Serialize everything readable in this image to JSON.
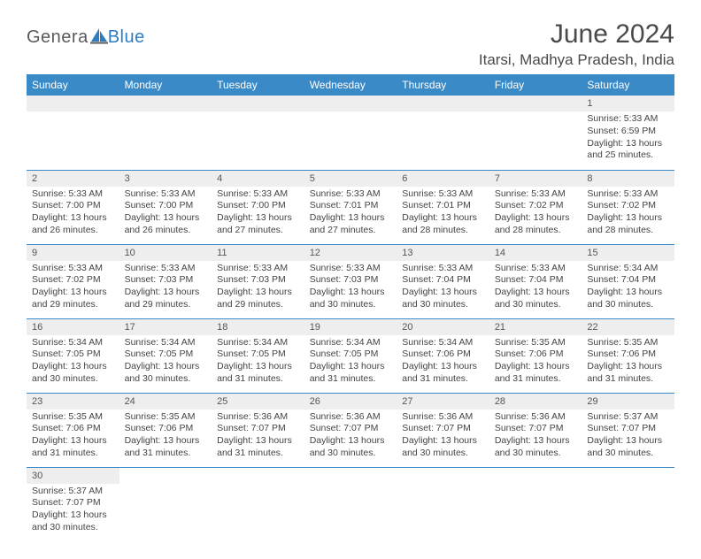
{
  "logo": {
    "text1": "Genera",
    "text2": "Blue"
  },
  "title": "June 2024",
  "location": "Itarsi, Madhya Pradesh, India",
  "colors": {
    "header_bg": "#3a8ac8",
    "header_text": "#ffffff",
    "daynum_bg": "#eeeeee",
    "cell_border": "#3a8ac8",
    "logo_gray": "#5a5a5a",
    "logo_blue": "#2f7cc0",
    "text": "#444444"
  },
  "daysOfWeek": [
    "Sunday",
    "Monday",
    "Tuesday",
    "Wednesday",
    "Thursday",
    "Friday",
    "Saturday"
  ],
  "weeks": [
    [
      {
        "blank": true
      },
      {
        "blank": true
      },
      {
        "blank": true
      },
      {
        "blank": true
      },
      {
        "blank": true
      },
      {
        "blank": true
      },
      {
        "n": "1",
        "sr": "5:33 AM",
        "ss": "6:59 PM",
        "dl": "13 hours and 25 minutes."
      }
    ],
    [
      {
        "n": "2",
        "sr": "5:33 AM",
        "ss": "7:00 PM",
        "dl": "13 hours and 26 minutes."
      },
      {
        "n": "3",
        "sr": "5:33 AM",
        "ss": "7:00 PM",
        "dl": "13 hours and 26 minutes."
      },
      {
        "n": "4",
        "sr": "5:33 AM",
        "ss": "7:00 PM",
        "dl": "13 hours and 27 minutes."
      },
      {
        "n": "5",
        "sr": "5:33 AM",
        "ss": "7:01 PM",
        "dl": "13 hours and 27 minutes."
      },
      {
        "n": "6",
        "sr": "5:33 AM",
        "ss": "7:01 PM",
        "dl": "13 hours and 28 minutes."
      },
      {
        "n": "7",
        "sr": "5:33 AM",
        "ss": "7:02 PM",
        "dl": "13 hours and 28 minutes."
      },
      {
        "n": "8",
        "sr": "5:33 AM",
        "ss": "7:02 PM",
        "dl": "13 hours and 28 minutes."
      }
    ],
    [
      {
        "n": "9",
        "sr": "5:33 AM",
        "ss": "7:02 PM",
        "dl": "13 hours and 29 minutes."
      },
      {
        "n": "10",
        "sr": "5:33 AM",
        "ss": "7:03 PM",
        "dl": "13 hours and 29 minutes."
      },
      {
        "n": "11",
        "sr": "5:33 AM",
        "ss": "7:03 PM",
        "dl": "13 hours and 29 minutes."
      },
      {
        "n": "12",
        "sr": "5:33 AM",
        "ss": "7:03 PM",
        "dl": "13 hours and 30 minutes."
      },
      {
        "n": "13",
        "sr": "5:33 AM",
        "ss": "7:04 PM",
        "dl": "13 hours and 30 minutes."
      },
      {
        "n": "14",
        "sr": "5:33 AM",
        "ss": "7:04 PM",
        "dl": "13 hours and 30 minutes."
      },
      {
        "n": "15",
        "sr": "5:34 AM",
        "ss": "7:04 PM",
        "dl": "13 hours and 30 minutes."
      }
    ],
    [
      {
        "n": "16",
        "sr": "5:34 AM",
        "ss": "7:05 PM",
        "dl": "13 hours and 30 minutes."
      },
      {
        "n": "17",
        "sr": "5:34 AM",
        "ss": "7:05 PM",
        "dl": "13 hours and 30 minutes."
      },
      {
        "n": "18",
        "sr": "5:34 AM",
        "ss": "7:05 PM",
        "dl": "13 hours and 31 minutes."
      },
      {
        "n": "19",
        "sr": "5:34 AM",
        "ss": "7:05 PM",
        "dl": "13 hours and 31 minutes."
      },
      {
        "n": "20",
        "sr": "5:34 AM",
        "ss": "7:06 PM",
        "dl": "13 hours and 31 minutes."
      },
      {
        "n": "21",
        "sr": "5:35 AM",
        "ss": "7:06 PM",
        "dl": "13 hours and 31 minutes."
      },
      {
        "n": "22",
        "sr": "5:35 AM",
        "ss": "7:06 PM",
        "dl": "13 hours and 31 minutes."
      }
    ],
    [
      {
        "n": "23",
        "sr": "5:35 AM",
        "ss": "7:06 PM",
        "dl": "13 hours and 31 minutes."
      },
      {
        "n": "24",
        "sr": "5:35 AM",
        "ss": "7:06 PM",
        "dl": "13 hours and 31 minutes."
      },
      {
        "n": "25",
        "sr": "5:36 AM",
        "ss": "7:07 PM",
        "dl": "13 hours and 31 minutes."
      },
      {
        "n": "26",
        "sr": "5:36 AM",
        "ss": "7:07 PM",
        "dl": "13 hours and 30 minutes."
      },
      {
        "n": "27",
        "sr": "5:36 AM",
        "ss": "7:07 PM",
        "dl": "13 hours and 30 minutes."
      },
      {
        "n": "28",
        "sr": "5:36 AM",
        "ss": "7:07 PM",
        "dl": "13 hours and 30 minutes."
      },
      {
        "n": "29",
        "sr": "5:37 AM",
        "ss": "7:07 PM",
        "dl": "13 hours and 30 minutes."
      }
    ],
    [
      {
        "n": "30",
        "sr": "5:37 AM",
        "ss": "7:07 PM",
        "dl": "13 hours and 30 minutes."
      },
      {
        "blank": true
      },
      {
        "blank": true
      },
      {
        "blank": true
      },
      {
        "blank": true
      },
      {
        "blank": true
      },
      {
        "blank": true
      }
    ]
  ],
  "labels": {
    "sunrise": "Sunrise: ",
    "sunset": "Sunset: ",
    "daylight": "Daylight: "
  }
}
